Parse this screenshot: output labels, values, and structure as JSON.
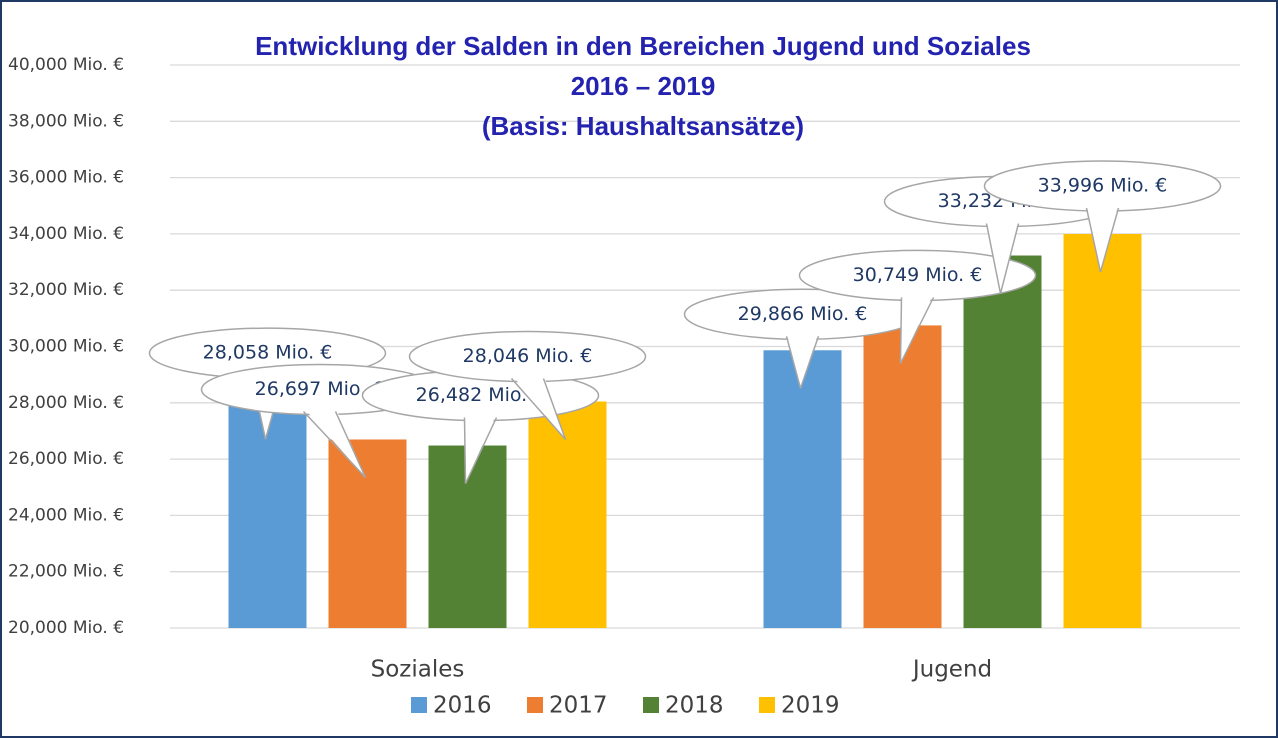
{
  "chart_data": {
    "type": "bar",
    "title": [
      "Entwicklung der Salden in den Bereichen Jugend und Soziales",
      "2016 – 2019",
      "(Basis: Haushaltsansätze)"
    ],
    "categories": [
      "Soziales",
      "Jugend"
    ],
    "series": [
      {
        "name": "2016",
        "color": "#5b9bd5",
        "values": [
          28058,
          29866
        ],
        "value_labels": [
          "28,058 Mio. €",
          "29,866 Mio. €"
        ]
      },
      {
        "name": "2017",
        "color": "#ed7d31",
        "values": [
          26697,
          30749
        ],
        "value_labels": [
          "26,697 Mio. €",
          "30,749 Mio. €"
        ]
      },
      {
        "name": "2018",
        "color": "#548235",
        "values": [
          26482,
          33232
        ],
        "value_labels": [
          "26,482 Mio. €",
          "33,232 Mio. €"
        ]
      },
      {
        "name": "2019",
        "color": "#ffc000",
        "values": [
          28046,
          33996
        ],
        "value_labels": [
          "28,046 Mio. €",
          "33,996 Mio. €"
        ]
      }
    ],
    "ylim": [
      20000,
      40000
    ],
    "yticks": [
      {
        "value": 20000,
        "label": "20,000 Mio. €"
      },
      {
        "value": 22000,
        "label": "22,000 Mio. €"
      },
      {
        "value": 24000,
        "label": "24,000 Mio. €"
      },
      {
        "value": 26000,
        "label": "26,000 Mio. €"
      },
      {
        "value": 28000,
        "label": "28,000 Mio. €"
      },
      {
        "value": 30000,
        "label": "30,000 Mio. €"
      },
      {
        "value": 32000,
        "label": "32,000 Mio. €"
      },
      {
        "value": 34000,
        "label": "34,000 Mio. €"
      },
      {
        "value": 36000,
        "label": "36,000 Mio. €"
      },
      {
        "value": 38000,
        "label": "38,000 Mio. €"
      },
      {
        "value": 40000,
        "label": "40,000 Mio. €"
      }
    ],
    "grid": true,
    "legend": "bottom"
  }
}
